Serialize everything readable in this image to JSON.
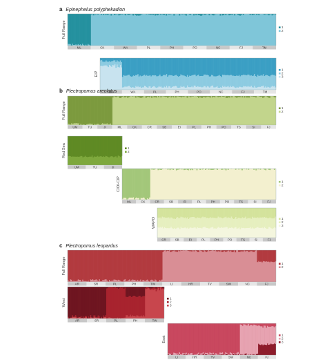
{
  "chart_data": {
    "type": "bar",
    "sections": [
      {
        "letter": "a",
        "species": "Epinephelus polyphekadion",
        "panels": [
          {
            "name": "Full Range",
            "k": 2,
            "legend": [
              "1",
              "2"
            ],
            "colors": [
              "#25919f",
              "#7fc6d9"
            ],
            "locations": [
              "ML",
              "CK",
              "WA",
              "PL",
              "PH",
              "PO",
              "NC",
              "FJ",
              "TM"
            ],
            "groups": [
              {
                "location": "ML",
                "assignment": [
                  0.98,
                  0.02
                ]
              },
              {
                "location": "CK",
                "assignment": [
                  0.02,
                  0.98
                ]
              },
              {
                "location": "WA",
                "assignment": [
                  0.02,
                  0.98
                ]
              },
              {
                "location": "PL",
                "assignment": [
                  0.02,
                  0.98
                ]
              },
              {
                "location": "PH",
                "assignment": [
                  0.02,
                  0.98
                ]
              },
              {
                "location": "PO",
                "assignment": [
                  0.02,
                  0.98
                ]
              },
              {
                "location": "NC",
                "assignment": [
                  0.02,
                  0.98
                ]
              },
              {
                "location": "FJ",
                "assignment": [
                  0.02,
                  0.98
                ]
              },
              {
                "location": "TM",
                "assignment": [
                  0.02,
                  0.98
                ]
              }
            ]
          },
          {
            "name": "EIP",
            "k": 3,
            "legend": [
              "1",
              "2",
              "3"
            ],
            "colors": [
              "#3b9fc4",
              "#8dcbe1",
              "#c8e3ef"
            ],
            "locations": [
              "CK",
              "WA",
              "PL",
              "PH",
              "PO",
              "NC",
              "FJ",
              "TM"
            ],
            "groups": [
              {
                "location": "CK",
                "assignment": [
                  0.1,
                  0.15,
                  0.75
                ]
              },
              {
                "location": "WA",
                "assignment": [
                  0.55,
                  0.35,
                  0.1
                ]
              },
              {
                "location": "PL",
                "assignment": [
                  0.55,
                  0.35,
                  0.1
                ]
              },
              {
                "location": "PH",
                "assignment": [
                  0.55,
                  0.35,
                  0.1
                ]
              },
              {
                "location": "PO",
                "assignment": [
                  0.55,
                  0.35,
                  0.1
                ]
              },
              {
                "location": "NC",
                "assignment": [
                  0.55,
                  0.35,
                  0.1
                ]
              },
              {
                "location": "FJ",
                "assignment": [
                  0.55,
                  0.35,
                  0.1
                ]
              },
              {
                "location": "TM",
                "assignment": [
                  0.55,
                  0.35,
                  0.1
                ]
              }
            ]
          }
        ]
      },
      {
        "letter": "b",
        "species": "Plectropomus areolatus",
        "panels": [
          {
            "name": "Full Range",
            "k": 2,
            "legend": [
              "1",
              "2"
            ],
            "colors": [
              "#7c9a3e",
              "#c2d58c"
            ],
            "locations": [
              "UM",
              "TU",
              "JI",
              "ML",
              "CK",
              "CR",
              "SB",
              "EI",
              "PL",
              "PH",
              "PO",
              "TS",
              "SI",
              "FJ"
            ],
            "groups": [
              {
                "location": "UM",
                "assignment": [
                  0.97,
                  0.03
                ]
              },
              {
                "location": "TU",
                "assignment": [
                  0.97,
                  0.03
                ]
              },
              {
                "location": "JI",
                "assignment": [
                  0.97,
                  0.03
                ]
              },
              {
                "location": "ML",
                "assignment": [
                  0.03,
                  0.97
                ]
              },
              {
                "location": "CK",
                "assignment": [
                  0.03,
                  0.97
                ]
              },
              {
                "location": "CR",
                "assignment": [
                  0.03,
                  0.97
                ]
              },
              {
                "location": "SB",
                "assignment": [
                  0.03,
                  0.97
                ]
              },
              {
                "location": "EI",
                "assignment": [
                  0.03,
                  0.97
                ]
              },
              {
                "location": "PL",
                "assignment": [
                  0.03,
                  0.97
                ]
              },
              {
                "location": "PH",
                "assignment": [
                  0.03,
                  0.97
                ]
              },
              {
                "location": "PO",
                "assignment": [
                  0.03,
                  0.97
                ]
              },
              {
                "location": "TS",
                "assignment": [
                  0.03,
                  0.97
                ]
              },
              {
                "location": "SI",
                "assignment": [
                  0.03,
                  0.97
                ]
              },
              {
                "location": "FJ",
                "assignment": [
                  0.03,
                  0.97
                ]
              }
            ]
          },
          {
            "name": "Red Sea",
            "k": 2,
            "legend": [
              "1",
              "2"
            ],
            "colors": [
              "#5f8a24",
              "#7ea83d"
            ],
            "locations": [
              "UM",
              "TU",
              "JI"
            ],
            "groups": [
              {
                "location": "UM",
                "assignment": [
                  0.7,
                  0.3
                ]
              },
              {
                "location": "TU",
                "assignment": [
                  0.7,
                  0.3
                ]
              },
              {
                "location": "JI",
                "assignment": [
                  0.7,
                  0.3
                ]
              }
            ]
          },
          {
            "name": "CIOI-CIP",
            "k": 2,
            "legend": [
              "1",
              "2"
            ],
            "colors": [
              "#a3c77a",
              "#f3f0cf"
            ],
            "locations": [
              "ML",
              "CK",
              "CR",
              "SB",
              "EI",
              "PL",
              "PH",
              "PO",
              "TS",
              "SI",
              "FJ"
            ],
            "groups": [
              {
                "location": "ML",
                "assignment": [
                  0.96,
                  0.04
                ]
              },
              {
                "location": "CK",
                "assignment": [
                  0.96,
                  0.04
                ]
              },
              {
                "location": "CR",
                "assignment": [
                  0.02,
                  0.98
                ]
              },
              {
                "location": "SB",
                "assignment": [
                  0.02,
                  0.98
                ]
              },
              {
                "location": "EI",
                "assignment": [
                  0.02,
                  0.98
                ]
              },
              {
                "location": "PL",
                "assignment": [
                  0.02,
                  0.98
                ]
              },
              {
                "location": "PH",
                "assignment": [
                  0.02,
                  0.98
                ]
              },
              {
                "location": "PO",
                "assignment": [
                  0.02,
                  0.98
                ]
              },
              {
                "location": "TS",
                "assignment": [
                  0.02,
                  0.98
                ]
              },
              {
                "location": "SI",
                "assignment": [
                  0.02,
                  0.98
                ]
              },
              {
                "location": "FJ",
                "assignment": [
                  0.02,
                  0.98
                ]
              }
            ]
          },
          {
            "name": "WAPO",
            "k": 3,
            "legend": [
              "1",
              "2",
              "3"
            ],
            "colors": [
              "#d4e39c",
              "#e6efbf",
              "#f4f6de"
            ],
            "locations": [
              "CR",
              "SB",
              "EI",
              "PL",
              "PH",
              "PO",
              "TS",
              "SI",
              "FJ"
            ],
            "groups": [
              {
                "location": "CR",
                "assignment": [
                  0.33,
                  0.34,
                  0.33
                ]
              },
              {
                "location": "SB",
                "assignment": [
                  0.33,
                  0.34,
                  0.33
                ]
              },
              {
                "location": "EI",
                "assignment": [
                  0.33,
                  0.34,
                  0.33
                ]
              },
              {
                "location": "PL",
                "assignment": [
                  0.33,
                  0.34,
                  0.33
                ]
              },
              {
                "location": "PH",
                "assignment": [
                  0.33,
                  0.34,
                  0.33
                ]
              },
              {
                "location": "PO",
                "assignment": [
                  0.33,
                  0.34,
                  0.33
                ]
              },
              {
                "location": "TS",
                "assignment": [
                  0.33,
                  0.34,
                  0.33
                ]
              },
              {
                "location": "SI",
                "assignment": [
                  0.33,
                  0.34,
                  0.33
                ]
              },
              {
                "location": "FJ",
                "assignment": [
                  0.33,
                  0.34,
                  0.33
                ]
              }
            ]
          }
        ]
      },
      {
        "letter": "c",
        "species": "Plectropomus leopardus",
        "panels": [
          {
            "name": "Full Range",
            "k": 2,
            "legend": [
              "1",
              "2"
            ],
            "colors": [
              "#b23a3f",
              "#d98e95"
            ],
            "locations": [
              "AR",
              "SR",
              "PL",
              "PH",
              "TW",
              "LI",
              "HR",
              "TV",
              "SW",
              "NC",
              "FJ"
            ],
            "groups": [
              {
                "location": "AR",
                "assignment": [
                  0.95,
                  0.05
                ]
              },
              {
                "location": "SR",
                "assignment": [
                  0.95,
                  0.05
                ]
              },
              {
                "location": "PL",
                "assignment": [
                  0.95,
                  0.05
                ]
              },
              {
                "location": "PH",
                "assignment": [
                  0.95,
                  0.05
                ]
              },
              {
                "location": "TW",
                "assignment": [
                  0.95,
                  0.05
                ]
              },
              {
                "location": "LI",
                "assignment": [
                  0.03,
                  0.97
                ]
              },
              {
                "location": "HR",
                "assignment": [
                  0.03,
                  0.97
                ]
              },
              {
                "location": "TV",
                "assignment": [
                  0.03,
                  0.97
                ]
              },
              {
                "location": "SW",
                "assignment": [
                  0.03,
                  0.97
                ]
              },
              {
                "location": "NC",
                "assignment": [
                  0.03,
                  0.97
                ]
              },
              {
                "location": "FJ",
                "assignment": [
                  0.35,
                  0.65
                ]
              }
            ]
          },
          {
            "name": "West",
            "k": 3,
            "legend": [
              "1",
              "2",
              "3"
            ],
            "colors": [
              "#6e1520",
              "#a8232e",
              "#c8464d"
            ],
            "locations": [
              "AR",
              "SR",
              "PL",
              "PH",
              "TW"
            ],
            "groups": [
              {
                "location": "AR",
                "assignment": [
                  0.95,
                  0.03,
                  0.02
                ]
              },
              {
                "location": "SR",
                "assignment": [
                  0.95,
                  0.03,
                  0.02
                ]
              },
              {
                "location": "PL",
                "assignment": [
                  0.03,
                  0.95,
                  0.02
                ]
              },
              {
                "location": "PH",
                "assignment": [
                  0.3,
                  0.6,
                  0.1
                ]
              },
              {
                "location": "TW",
                "assignment": [
                  0.03,
                  0.05,
                  0.92
                ]
              }
            ]
          },
          {
            "name": "East",
            "k": 3,
            "legend": [
              "1",
              "2",
              "3"
            ],
            "colors": [
              "#c9485f",
              "#e7a3b1",
              "#8e1d2c"
            ],
            "locations": [
              "LI",
              "HR",
              "TV",
              "SW",
              "NC",
              "FJ"
            ],
            "groups": [
              {
                "location": "LI",
                "assignment": [
                  0.95,
                  0.04,
                  0.01
                ]
              },
              {
                "location": "HR",
                "assignment": [
                  0.95,
                  0.04,
                  0.01
                ]
              },
              {
                "location": "TV",
                "assignment": [
                  0.95,
                  0.04,
                  0.01
                ]
              },
              {
                "location": "SW",
                "assignment": [
                  0.95,
                  0.04,
                  0.01
                ]
              },
              {
                "location": "NC",
                "assignment": [
                  0.05,
                  0.93,
                  0.02
                ]
              },
              {
                "location": "FJ",
                "assignment": [
                  0.1,
                  0.55,
                  0.35
                ]
              }
            ]
          }
        ]
      }
    ]
  }
}
